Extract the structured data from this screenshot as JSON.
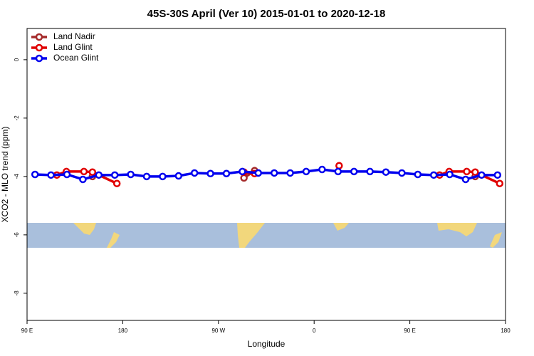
{
  "chart_data": {
    "type": "line",
    "title": "45S-30S April (Ver 10)   2015-01-01 to 2020-12-18",
    "x_label": "Longitude",
    "y_label": "XCO2 - MLO trend (ppm)",
    "xlim": [
      90,
      540
    ],
    "ylim": [
      -8.93,
      1.07
    ],
    "xticks": [
      {
        "value": 90,
        "label": "90 E"
      },
      180,
      {
        "value": 270,
        "label": "90 W"
      },
      {
        "value": 360,
        "label": "0"
      },
      {
        "value": 450,
        "label": "90 E"
      },
      {
        "value": 540,
        "label": "180"
      }
    ],
    "yticks": [
      0,
      -2,
      -4,
      -6,
      -8
    ],
    "legend": "top-left",
    "series": [
      {
        "name": "Land Nadir",
        "color": "#a52a2a",
        "x": [
          151.5,
          null,
          294,
          304,
          null,
          511.5
        ],
        "values": [
          -4.0,
          null,
          -4.05,
          -3.8,
          null,
          -4.0
        ]
      },
      {
        "name": "Land Glint",
        "color": "#e00000",
        "x": [
          118,
          127,
          143.5,
          151.5,
          174.5,
          null,
          294,
          304,
          null,
          383.5,
          null,
          478,
          487,
          503.5,
          511.5,
          534.5
        ],
        "values": [
          -3.95,
          -3.83,
          -3.83,
          -3.85,
          -4.24,
          null,
          -3.85,
          -3.9,
          null,
          -3.63,
          null,
          -3.95,
          -3.83,
          -3.83,
          -3.85,
          -4.24
        ]
      },
      {
        "name": "Ocean Glint",
        "color": "#0000ee",
        "x": [
          97.5,
          112.5,
          127.5,
          142.5,
          157.5,
          172.5,
          187.5,
          202.5,
          217.5,
          232.5,
          247.5,
          262.5,
          277.5,
          292.5,
          307.5,
          322.5,
          337.5,
          352.5,
          367.5,
          382.5,
          397.5,
          412.5,
          427.5,
          442.5,
          457.5,
          472.5,
          487.5,
          502.5,
          517.5,
          532.5
        ],
        "values": [
          -3.93,
          -3.95,
          -3.93,
          -4.1,
          -3.95,
          -3.95,
          -3.93,
          -4.0,
          -4.0,
          -3.98,
          -3.88,
          -3.9,
          -3.9,
          -3.83,
          -3.88,
          -3.88,
          -3.88,
          -3.83,
          -3.76,
          -3.83,
          -3.83,
          -3.83,
          -3.85,
          -3.88,
          -3.93,
          -3.95,
          -3.93,
          -4.1,
          -3.95,
          -3.95
        ]
      }
    ]
  }
}
